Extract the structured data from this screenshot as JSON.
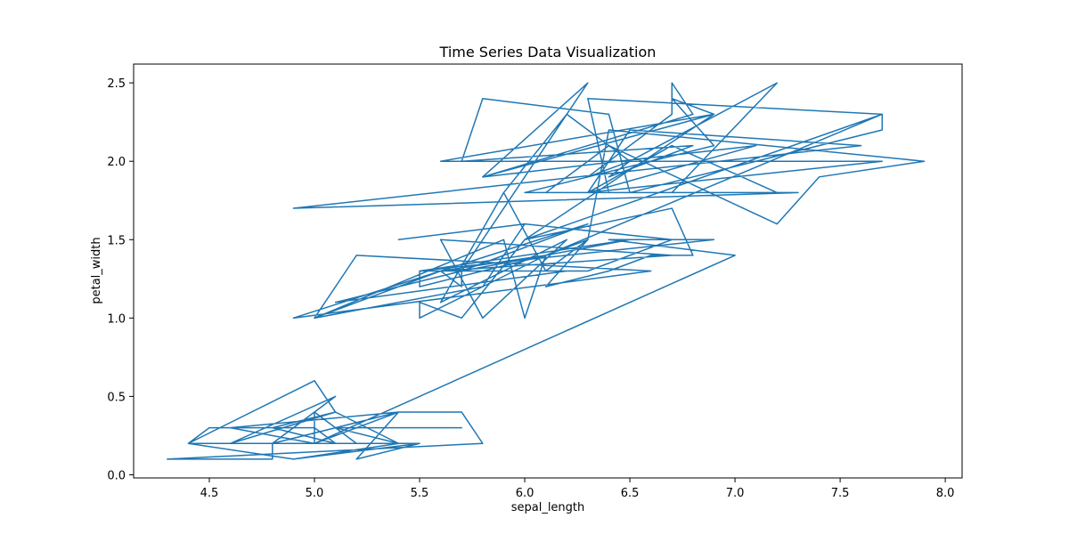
{
  "chart_data": {
    "type": "line",
    "title": "Time Series Data Visualization",
    "xlabel": "sepal_length",
    "ylabel": "petal_width",
    "xlim": [
      4.14,
      8.08
    ],
    "ylim": [
      -0.02,
      2.62
    ],
    "xticks": [
      4.5,
      5.0,
      5.5,
      6.0,
      6.5,
      7.0,
      7.5,
      8.0
    ],
    "xtick_labels": [
      "4.5",
      "5.0",
      "5.5",
      "6.0",
      "6.5",
      "7.0",
      "7.5",
      "8.0"
    ],
    "yticks": [
      0.0,
      0.5,
      1.0,
      1.5,
      2.0,
      2.5
    ],
    "ytick_labels": [
      "0.0",
      "0.5",
      "1.0",
      "1.5",
      "2.0",
      "2.5"
    ],
    "grid": false,
    "line_color": "#1f77b4",
    "series": [
      {
        "x": [
          5.1,
          4.9,
          4.7,
          4.6,
          5.0,
          5.4,
          4.6,
          5.0,
          4.4,
          4.9,
          5.4,
          4.8,
          4.8,
          4.3,
          5.8,
          5.7,
          5.4,
          5.1,
          5.7,
          5.1,
          5.4,
          5.1,
          4.6,
          5.1,
          4.8,
          5.0,
          5.0,
          5.2,
          5.2,
          4.7,
          4.8,
          5.4,
          5.2,
          5.5,
          4.9,
          5.0,
          5.5,
          4.9,
          4.4,
          5.1,
          5.0,
          4.5,
          4.4,
          5.0,
          5.1,
          4.8,
          5.1,
          4.6,
          5.3,
          5.0,
          7.0,
          6.4,
          6.9,
          5.5,
          6.5,
          5.7,
          6.3,
          4.9,
          6.6,
          5.2,
          5.0,
          5.9,
          6.0,
          6.1,
          5.6,
          6.7,
          5.6,
          5.8,
          6.2,
          5.6,
          5.9,
          6.1,
          6.3,
          6.1,
          6.4,
          6.6,
          6.8,
          6.7,
          6.0,
          5.7,
          5.5,
          5.5,
          5.8,
          6.0,
          5.4,
          6.0,
          6.7,
          6.3,
          5.6,
          5.5,
          5.5,
          6.1,
          5.8,
          5.0,
          5.6,
          5.7,
          5.7,
          6.2,
          5.1,
          5.7,
          6.3,
          5.8,
          7.1,
          6.3,
          6.5,
          7.6,
          4.9,
          7.3,
          6.7,
          7.2,
          6.5,
          6.4,
          6.8,
          5.7,
          5.8,
          6.4,
          6.5,
          7.7,
          7.7,
          6.0,
          6.9,
          5.6,
          7.7,
          6.3,
          6.7,
          7.2,
          6.2,
          6.1,
          6.4,
          7.2,
          7.4,
          7.9,
          6.4,
          6.3,
          6.1,
          7.7,
          6.3,
          6.4,
          6.0,
          6.9,
          6.7,
          6.9,
          5.8,
          6.8,
          6.7,
          6.7,
          6.3,
          6.5,
          6.2,
          5.9
        ],
        "y": [
          0.2,
          0.2,
          0.2,
          0.2,
          0.2,
          0.4,
          0.3,
          0.2,
          0.2,
          0.1,
          0.2,
          0.2,
          0.1,
          0.1,
          0.2,
          0.4,
          0.4,
          0.3,
          0.3,
          0.3,
          0.2,
          0.4,
          0.2,
          0.5,
          0.2,
          0.2,
          0.4,
          0.2,
          0.2,
          0.2,
          0.2,
          0.4,
          0.1,
          0.2,
          0.2,
          0.2,
          0.2,
          0.1,
          0.2,
          0.2,
          0.3,
          0.3,
          0.2,
          0.6,
          0.4,
          0.3,
          0.2,
          0.2,
          0.2,
          0.2,
          1.4,
          1.5,
          1.5,
          1.3,
          1.5,
          1.3,
          1.6,
          1.0,
          1.3,
          1.4,
          1.0,
          1.5,
          1.0,
          1.4,
          1.3,
          1.4,
          1.5,
          1.0,
          1.5,
          1.1,
          1.8,
          1.3,
          1.5,
          1.2,
          1.3,
          1.4,
          1.4,
          1.7,
          1.5,
          1.0,
          1.1,
          1.0,
          1.2,
          1.6,
          1.5,
          1.6,
          1.5,
          1.3,
          1.3,
          1.3,
          1.2,
          1.4,
          1.2,
          1.0,
          1.3,
          1.2,
          1.3,
          1.3,
          1.1,
          1.3,
          2.5,
          1.9,
          2.1,
          1.8,
          2.2,
          2.1,
          1.7,
          1.8,
          1.8,
          2.5,
          2.0,
          1.9,
          2.1,
          2.0,
          2.4,
          2.3,
          1.8,
          2.2,
          2.3,
          1.5,
          2.3,
          2.0,
          2.0,
          1.8,
          2.1,
          1.8,
          1.8,
          1.8,
          2.1,
          1.6,
          1.9,
          2.0,
          2.2,
          1.5,
          1.4,
          2.3,
          2.4,
          1.8,
          1.8,
          2.1,
          2.4,
          2.3,
          1.9,
          2.3,
          2.5,
          2.3,
          1.9,
          2.0,
          2.3,
          1.8
        ]
      }
    ]
  }
}
